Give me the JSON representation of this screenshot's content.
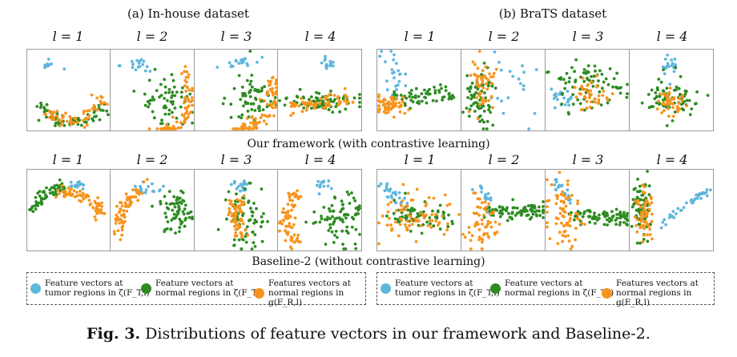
{
  "dataset_titles": [
    "(a) In-house dataset",
    "(b) BraTS dataset"
  ],
  "layer_labels": [
    "l = 1",
    "l = 2",
    "l = 3",
    "l = 4"
  ],
  "row_captions": [
    "Our framework (with contrastive learning)",
    "Baseline-2 (without contrastive learning)"
  ],
  "colors": {
    "tumor": "#5eb6dc",
    "normal_zeta": "#2e8b22",
    "normal_g": "#f7941d"
  },
  "legend": [
    {
      "color_key": "tumor",
      "text": "Feature vectors at\ntumor regions in ζ(F_T,l)"
    },
    {
      "color_key": "normal_zeta",
      "text": "Feature vectors at\nnormal regions in ζ(F_T,l)"
    },
    {
      "color_key": "normal_g",
      "text": "Features vectors at\nnormal regions in g(F_R,l)"
    }
  ],
  "figure_caption": {
    "label": "Fig. 3.",
    "text": " Distributions of feature vectors in our framework and Baseline-2."
  }
}
